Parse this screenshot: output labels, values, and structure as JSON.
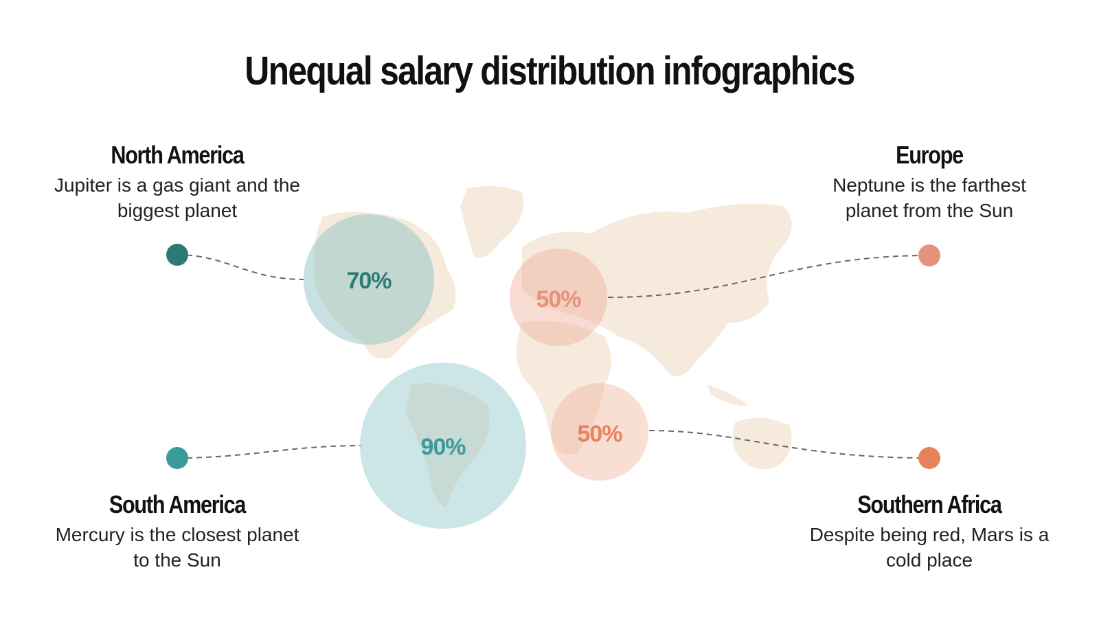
{
  "title": "Unequal salary distribution infographics",
  "colors": {
    "teal_dark": "#2a7a75",
    "teal": "#3a9a9c",
    "salmon": "#e5927a",
    "orange": "#e8825a",
    "map": "#f6eadc"
  },
  "chart_data": {
    "type": "bubble-map",
    "regions": [
      {
        "name": "North America",
        "description": "Jupiter is a gas giant and the biggest planet",
        "value": 70,
        "label": "70%",
        "color": "#2a7a75"
      },
      {
        "name": "South America",
        "description": "Mercury is the closest planet to the Sun",
        "value": 90,
        "label": "90%",
        "color": "#3a9a9c"
      },
      {
        "name": "Europe",
        "description": "Neptune is the farthest planet from the Sun",
        "value": 50,
        "label": "50%",
        "color": "#e5927a"
      },
      {
        "name": "Southern Africa",
        "description": "Despite being red, Mars is a cold place",
        "value": 50,
        "label": "50%",
        "color": "#e8825a"
      }
    ]
  }
}
